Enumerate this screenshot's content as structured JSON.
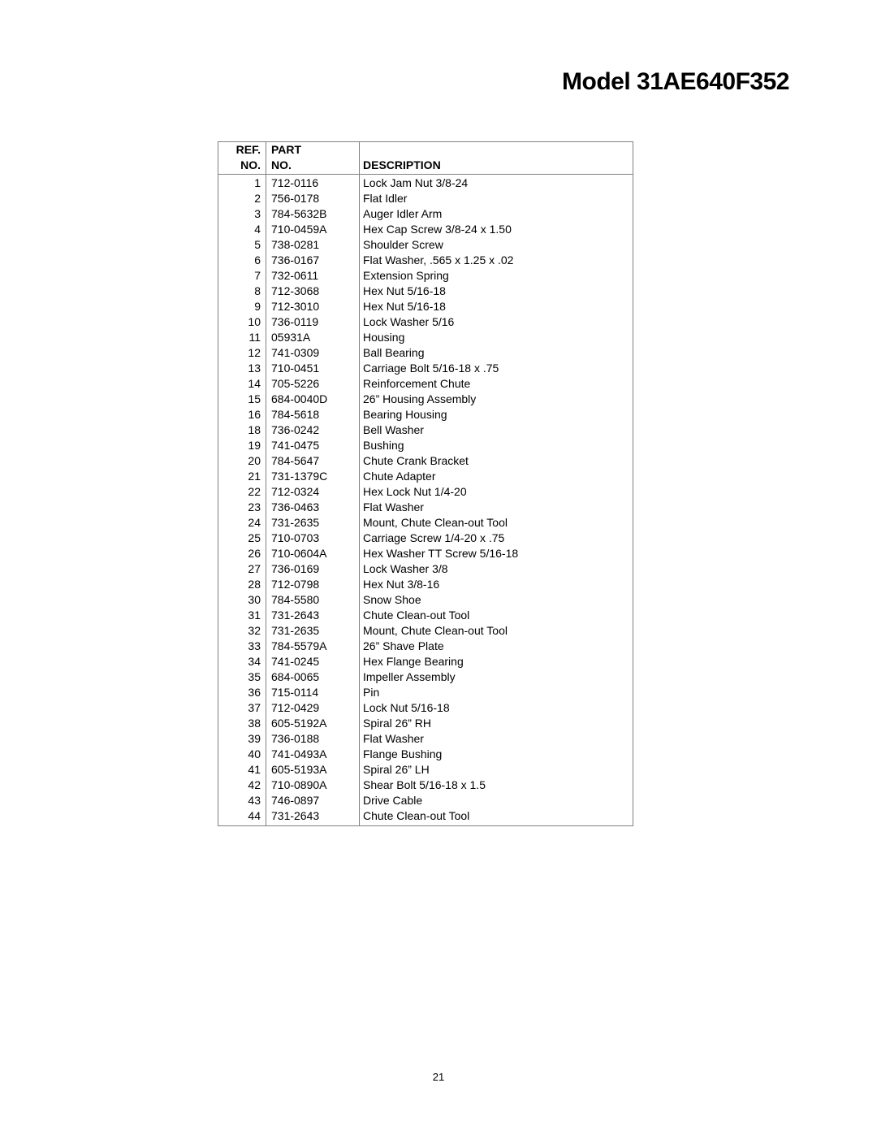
{
  "title": "Model 31AE640F352",
  "page_number": "21",
  "table": {
    "headers": {
      "ref_line1": "REF.",
      "ref_line2": "NO.",
      "part_line1": "PART",
      "part_line2": "NO.",
      "desc_line1": " ",
      "desc_line2": "DESCRIPTION"
    },
    "rows": [
      {
        "ref": "1",
        "part": "712-0116",
        "desc": "Lock Jam Nut 3/8-24"
      },
      {
        "ref": "2",
        "part": "756-0178",
        "desc": "Flat Idler"
      },
      {
        "ref": "3",
        "part": "784-5632B",
        "desc": "Auger Idler Arm"
      },
      {
        "ref": "4",
        "part": "710-0459A",
        "desc": "Hex Cap Screw 3/8-24 x 1.50"
      },
      {
        "ref": "5",
        "part": "738-0281",
        "desc": "Shoulder Screw"
      },
      {
        "ref": "6",
        "part": "736-0167",
        "desc": "Flat Washer, .565 x 1.25 x .02"
      },
      {
        "ref": "7",
        "part": "732-0611",
        "desc": "Extension Spring"
      },
      {
        "ref": "8",
        "part": "712-3068",
        "desc": "Hex Nut 5/16-18"
      },
      {
        "ref": "9",
        "part": "712-3010",
        "desc": "Hex Nut 5/16-18"
      },
      {
        "ref": "10",
        "part": "736-0119",
        "desc": "Lock Washer 5/16"
      },
      {
        "ref": "11",
        "part": "05931A",
        "desc": "Housing"
      },
      {
        "ref": "12",
        "part": "741-0309",
        "desc": "Ball Bearing"
      },
      {
        "ref": "13",
        "part": "710-0451",
        "desc": "Carriage Bolt 5/16-18 x .75"
      },
      {
        "ref": "14",
        "part": "705-5226",
        "desc": "Reinforcement Chute"
      },
      {
        "ref": "15",
        "part": "684-0040D",
        "desc": "26” Housing Assembly"
      },
      {
        "ref": "16",
        "part": "784-5618",
        "desc": "Bearing Housing"
      },
      {
        "ref": "18",
        "part": "736-0242",
        "desc": "Bell Washer"
      },
      {
        "ref": "19",
        "part": "741-0475",
        "desc": "Bushing"
      },
      {
        "ref": "20",
        "part": "784-5647",
        "desc": "Chute Crank Bracket"
      },
      {
        "ref": "21",
        "part": "731-1379C",
        "desc": "Chute Adapter"
      },
      {
        "ref": "22",
        "part": "712-0324",
        "desc": "Hex Lock Nut 1/4-20"
      },
      {
        "ref": "23",
        "part": "736-0463",
        "desc": "Flat Washer"
      },
      {
        "ref": "24",
        "part": "731-2635",
        "desc": "Mount, Chute Clean-out Tool"
      },
      {
        "ref": "25",
        "part": "710-0703",
        "desc": "Carriage Screw 1/4-20 x .75"
      },
      {
        "ref": "26",
        "part": "710-0604A",
        "desc": "Hex Washer TT Screw 5/16-18"
      },
      {
        "ref": "27",
        "part": "736-0169",
        "desc": "Lock Washer 3/8"
      },
      {
        "ref": "28",
        "part": "712-0798",
        "desc": "Hex Nut 3/8-16"
      },
      {
        "ref": "30",
        "part": "784-5580",
        "desc": "Snow Shoe"
      },
      {
        "ref": "31",
        "part": "731-2643",
        "desc": "Chute Clean-out Tool"
      },
      {
        "ref": "32",
        "part": "731-2635",
        "desc": "Mount, Chute Clean-out Tool"
      },
      {
        "ref": "33",
        "part": "784-5579A",
        "desc": "26” Shave Plate"
      },
      {
        "ref": "34",
        "part": "741-0245",
        "desc": "Hex Flange Bearing"
      },
      {
        "ref": "35",
        "part": "684-0065",
        "desc": "Impeller Assembly"
      },
      {
        "ref": "36",
        "part": "715-0114",
        "desc": "Pin"
      },
      {
        "ref": "37",
        "part": "712-0429",
        "desc": "Lock Nut 5/16-18"
      },
      {
        "ref": "38",
        "part": "605-5192A",
        "desc": "Spiral 26” RH"
      },
      {
        "ref": "39",
        "part": "736-0188",
        "desc": "Flat Washer"
      },
      {
        "ref": "40",
        "part": "741-0493A",
        "desc": "Flange Bushing"
      },
      {
        "ref": "41",
        "part": "605-5193A",
        "desc": "Spiral 26” LH"
      },
      {
        "ref": "42",
        "part": "710-0890A",
        "desc": "Shear Bolt 5/16-18 x 1.5"
      },
      {
        "ref": "43",
        "part": "746-0897",
        "desc": "Drive Cable"
      },
      {
        "ref": "44",
        "part": "731-2643",
        "desc": "Chute Clean-out Tool"
      }
    ]
  }
}
